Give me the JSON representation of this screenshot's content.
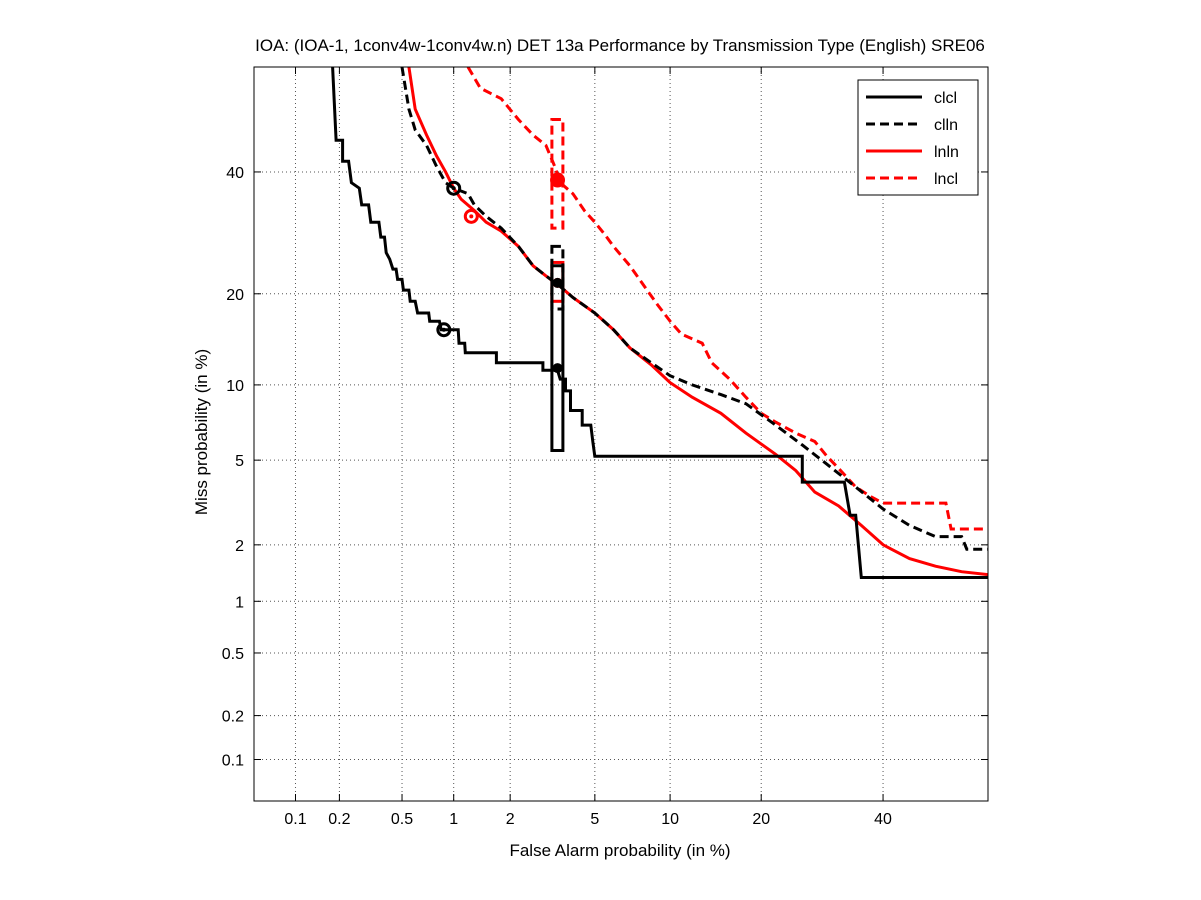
{
  "chart_data": {
    "type": "line",
    "title": "IOA: (IOA-1, 1conv4w-1conv4w.n) DET 13a Performance by Transmission Type (English) SRE06",
    "xlabel": "False Alarm probability (in %)",
    "ylabel": "Miss probability (in %)",
    "scale": "normal-deviate (probit) on both axes",
    "xlim": [
      0.05,
      60
    ],
    "ylim": [
      0.05,
      60
    ],
    "x_ticks": [
      "0.1",
      "0.2",
      "0.5",
      "1",
      "2",
      "5",
      "10",
      "20",
      "40"
    ],
    "y_ticks": [
      "0.1",
      "0.2",
      "0.5",
      "1",
      "2",
      "5",
      "10",
      "20",
      "40"
    ],
    "grid": true,
    "legend_position": "top-right",
    "series": [
      {
        "name": "clcl",
        "color": "#000000",
        "dash": "solid",
        "points": [
          [
            0.18,
            60
          ],
          [
            0.19,
            46
          ],
          [
            0.21,
            46
          ],
          [
            0.21,
            42
          ],
          [
            0.23,
            42
          ],
          [
            0.24,
            38
          ],
          [
            0.27,
            37
          ],
          [
            0.28,
            34
          ],
          [
            0.31,
            34
          ],
          [
            0.32,
            31
          ],
          [
            0.36,
            31
          ],
          [
            0.37,
            28.5
          ],
          [
            0.39,
            28.5
          ],
          [
            0.4,
            26
          ],
          [
            0.42,
            25
          ],
          [
            0.44,
            23.5
          ],
          [
            0.46,
            23.5
          ],
          [
            0.47,
            22
          ],
          [
            0.5,
            22
          ],
          [
            0.51,
            20.5
          ],
          [
            0.55,
            20.5
          ],
          [
            0.56,
            19
          ],
          [
            0.6,
            19
          ],
          [
            0.62,
            17.5
          ],
          [
            0.72,
            17.5
          ],
          [
            0.73,
            16.5
          ],
          [
            0.83,
            16.5
          ],
          [
            0.85,
            15.5
          ],
          [
            1.06,
            15.5
          ],
          [
            1.07,
            14
          ],
          [
            1.15,
            14
          ],
          [
            1.16,
            13
          ],
          [
            1.7,
            13
          ],
          [
            1.7,
            12
          ],
          [
            2.9,
            12
          ],
          [
            2.9,
            11.3
          ],
          [
            3.4,
            11.3
          ],
          [
            3.5,
            10.5
          ],
          [
            3.7,
            10.5
          ],
          [
            3.7,
            9.5
          ],
          [
            3.9,
            9.5
          ],
          [
            3.9,
            8
          ],
          [
            4.4,
            8
          ],
          [
            4.4,
            7
          ],
          [
            4.8,
            7
          ],
          [
            4.9,
            6
          ],
          [
            5.0,
            5.2
          ],
          [
            26,
            5.2
          ],
          [
            26,
            4
          ],
          [
            33,
            4
          ],
          [
            34,
            2.8
          ],
          [
            35,
            2.8
          ],
          [
            36,
            1.35
          ],
          [
            60,
            1.35
          ]
        ],
        "marker": [
          0.88,
          15.5
        ],
        "box": {
          "x": [
            3.2,
            3.6
          ],
          "y": [
            5.5,
            24
          ]
        },
        "center": [
          3.4,
          11.5
        ]
      },
      {
        "name": "clln",
        "color": "#000000",
        "dash": "dashed",
        "points": [
          [
            0.5,
            60
          ],
          [
            0.55,
            52
          ],
          [
            0.6,
            48
          ],
          [
            0.7,
            45
          ],
          [
            0.8,
            41
          ],
          [
            0.9,
            38
          ],
          [
            1.0,
            37
          ],
          [
            1.2,
            36
          ],
          [
            1.3,
            34
          ],
          [
            1.5,
            32
          ],
          [
            1.8,
            30
          ],
          [
            2.2,
            27
          ],
          [
            2.6,
            24
          ],
          [
            3.0,
            22.5
          ],
          [
            3.5,
            21
          ],
          [
            4.0,
            19.5
          ],
          [
            5.0,
            17.5
          ],
          [
            6.0,
            15.5
          ],
          [
            7.0,
            13.5
          ],
          [
            8.5,
            12
          ],
          [
            10,
            10.8
          ],
          [
            12,
            10
          ],
          [
            15,
            9.2
          ],
          [
            18,
            8.5
          ],
          [
            22,
            7
          ],
          [
            26,
            5.8
          ],
          [
            30,
            4.8
          ],
          [
            35,
            3.8
          ],
          [
            40,
            3
          ],
          [
            45,
            2.5
          ],
          [
            50,
            2.2
          ],
          [
            55,
            2.2
          ],
          [
            56,
            1.9
          ],
          [
            60,
            1.9
          ]
        ],
        "marker": [
          1.0,
          37
        ],
        "box": {
          "x": [
            3.2,
            3.6
          ],
          "y": [
            18,
            27
          ]
        },
        "center": [
          3.4,
          21.5
        ]
      },
      {
        "name": "lnln",
        "color": "#ff0000",
        "dash": "solid",
        "points": [
          [
            0.55,
            60
          ],
          [
            0.6,
            52
          ],
          [
            0.7,
            47
          ],
          [
            0.8,
            43
          ],
          [
            0.9,
            40
          ],
          [
            1.0,
            37
          ],
          [
            1.1,
            35
          ],
          [
            1.3,
            33
          ],
          [
            1.5,
            31
          ],
          [
            1.8,
            29.5
          ],
          [
            2.2,
            27
          ],
          [
            2.6,
            24
          ],
          [
            3.0,
            22.5
          ],
          [
            3.5,
            21
          ],
          [
            4.0,
            19.5
          ],
          [
            5.0,
            17.5
          ],
          [
            6.0,
            15.5
          ],
          [
            7.0,
            13.5
          ],
          [
            8.5,
            11.8
          ],
          [
            10,
            10.2
          ],
          [
            12,
            9
          ],
          [
            15,
            7.8
          ],
          [
            18,
            6.5
          ],
          [
            22,
            5.3
          ],
          [
            25,
            4.5
          ],
          [
            28,
            3.6
          ],
          [
            32,
            3.1
          ],
          [
            36,
            2.5
          ],
          [
            40,
            2.0
          ],
          [
            45,
            1.7
          ],
          [
            50,
            1.55
          ],
          [
            55,
            1.45
          ],
          [
            60,
            1.4
          ]
        ],
        "marker": [
          1.25,
          32
        ],
        "box": {
          "x": [
            3.2,
            3.6
          ],
          "y": [
            19,
            24.5
          ]
        },
        "center": [
          3.4,
          21.5
        ]
      },
      {
        "name": "lncl",
        "color": "#ff0000",
        "dash": "dashed",
        "points": [
          [
            1.2,
            60
          ],
          [
            1.4,
            56
          ],
          [
            1.8,
            54
          ],
          [
            2.2,
            50
          ],
          [
            2.6,
            47
          ],
          [
            3.0,
            45
          ],
          [
            3.3,
            41
          ],
          [
            3.5,
            38
          ],
          [
            4.0,
            36
          ],
          [
            4.5,
            33
          ],
          [
            5.0,
            31
          ],
          [
            5.5,
            29
          ],
          [
            6.0,
            27
          ],
          [
            7.0,
            24
          ],
          [
            8.0,
            21
          ],
          [
            9.0,
            18.5
          ],
          [
            10,
            16.5
          ],
          [
            11,
            15
          ],
          [
            13,
            14
          ],
          [
            14,
            12
          ],
          [
            16,
            10.5
          ],
          [
            18,
            9
          ],
          [
            20,
            7.8
          ],
          [
            22,
            7.2
          ],
          [
            25,
            6.5
          ],
          [
            28,
            6
          ],
          [
            30,
            5.2
          ],
          [
            32,
            4.6
          ],
          [
            35,
            3.8
          ],
          [
            38,
            3.4
          ],
          [
            40,
            3.2
          ],
          [
            45,
            3.2
          ],
          [
            52,
            3.2
          ],
          [
            53,
            2.4
          ],
          [
            60,
            2.4
          ]
        ],
        "marker": [
          3.4,
          38.5
        ],
        "box": {
          "x": [
            3.2,
            3.6
          ],
          "y": [
            30,
            50
          ]
        },
        "center": [
          3.4,
          38.5
        ]
      }
    ]
  }
}
